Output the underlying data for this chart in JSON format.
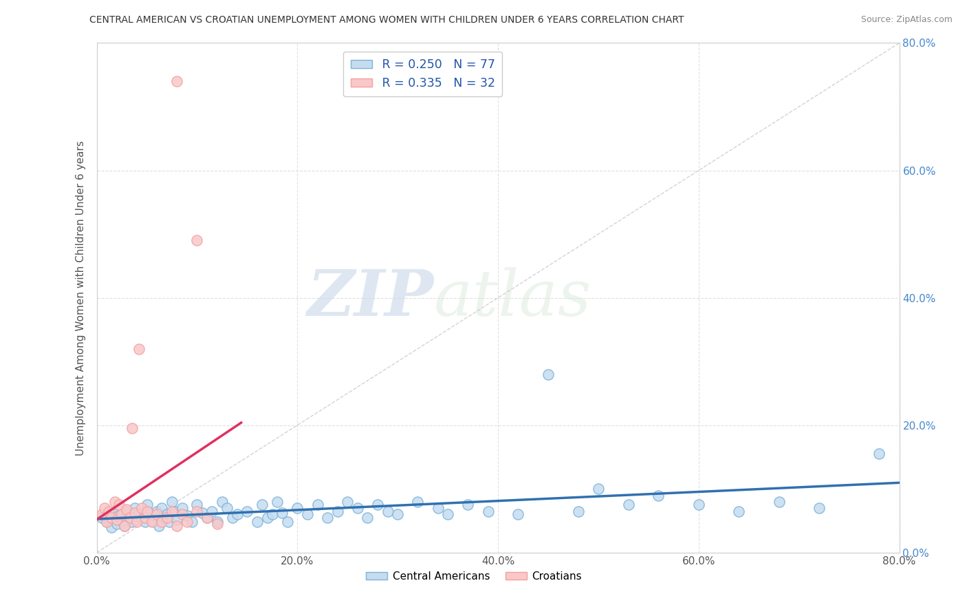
{
  "title": "CENTRAL AMERICAN VS CROATIAN UNEMPLOYMENT AMONG WOMEN WITH CHILDREN UNDER 6 YEARS CORRELATION CHART",
  "source": "Source: ZipAtlas.com",
  "ylabel": "Unemployment Among Women with Children Under 6 years",
  "xlim": [
    0.0,
    0.8
  ],
  "ylim": [
    0.0,
    0.8
  ],
  "xticks": [
    0.0,
    0.2,
    0.4,
    0.6,
    0.8
  ],
  "yticks": [
    0.0,
    0.2,
    0.4,
    0.6,
    0.8
  ],
  "xticklabels": [
    "0.0%",
    "20.0%",
    "40.0%",
    "60.0%",
    "80.0%"
  ],
  "right_yticklabels": [
    "0.0%",
    "20.0%",
    "40.0%",
    "60.0%",
    "80.0%"
  ],
  "legend_R1": "R = 0.250",
  "legend_N1": "N = 77",
  "legend_R2": "R = 0.335",
  "legend_N2": "N = 32",
  "blue_color": "#7ab3d9",
  "pink_color": "#f4a0a0",
  "blue_fill": "#c5dcf0",
  "pink_fill": "#f9c8c8",
  "trend_blue": "#3070b0",
  "trend_pink": "#e03060",
  "diag_color": "#cccccc",
  "watermark_zip": "ZIP",
  "watermark_atlas": "atlas",
  "grid_color": "#dddddd",
  "blue_x": [
    0.005,
    0.01,
    0.012,
    0.015,
    0.018,
    0.02,
    0.022,
    0.025,
    0.028,
    0.03,
    0.033,
    0.035,
    0.038,
    0.04,
    0.042,
    0.045,
    0.048,
    0.05,
    0.052,
    0.055,
    0.058,
    0.06,
    0.062,
    0.065,
    0.068,
    0.07,
    0.072,
    0.075,
    0.078,
    0.08,
    0.085,
    0.09,
    0.095,
    0.1,
    0.105,
    0.11,
    0.115,
    0.12,
    0.125,
    0.13,
    0.135,
    0.14,
    0.15,
    0.16,
    0.165,
    0.17,
    0.175,
    0.18,
    0.185,
    0.19,
    0.2,
    0.21,
    0.22,
    0.23,
    0.24,
    0.25,
    0.26,
    0.27,
    0.28,
    0.29,
    0.3,
    0.32,
    0.34,
    0.35,
    0.37,
    0.39,
    0.42,
    0.45,
    0.48,
    0.5,
    0.53,
    0.56,
    0.6,
    0.64,
    0.68,
    0.72,
    0.78
  ],
  "blue_y": [
    0.055,
    0.048,
    0.052,
    0.04,
    0.06,
    0.045,
    0.058,
    0.05,
    0.042,
    0.065,
    0.055,
    0.048,
    0.07,
    0.052,
    0.06,
    0.055,
    0.048,
    0.075,
    0.062,
    0.05,
    0.058,
    0.065,
    0.042,
    0.07,
    0.055,
    0.06,
    0.048,
    0.08,
    0.065,
    0.052,
    0.07,
    0.058,
    0.048,
    0.075,
    0.062,
    0.055,
    0.065,
    0.048,
    0.08,
    0.07,
    0.055,
    0.06,
    0.065,
    0.048,
    0.075,
    0.055,
    0.06,
    0.08,
    0.062,
    0.048,
    0.07,
    0.06,
    0.075,
    0.055,
    0.065,
    0.08,
    0.07,
    0.055,
    0.075,
    0.065,
    0.06,
    0.08,
    0.07,
    0.06,
    0.075,
    0.065,
    0.06,
    0.28,
    0.065,
    0.1,
    0.075,
    0.09,
    0.075,
    0.065,
    0.08,
    0.07,
    0.155
  ],
  "pink_x": [
    0.005,
    0.008,
    0.01,
    0.012,
    0.015,
    0.018,
    0.02,
    0.022,
    0.025,
    0.028,
    0.03,
    0.033,
    0.035,
    0.038,
    0.04,
    0.042,
    0.045,
    0.048,
    0.05,
    0.055,
    0.06,
    0.065,
    0.07,
    0.075,
    0.08,
    0.085,
    0.09,
    0.1,
    0.11,
    0.12,
    0.08,
    0.1
  ],
  "pink_y": [
    0.06,
    0.07,
    0.048,
    0.065,
    0.055,
    0.08,
    0.052,
    0.075,
    0.06,
    0.042,
    0.068,
    0.055,
    0.195,
    0.062,
    0.048,
    0.32,
    0.07,
    0.055,
    0.065,
    0.048,
    0.06,
    0.048,
    0.055,
    0.065,
    0.042,
    0.06,
    0.048,
    0.065,
    0.055,
    0.045,
    0.74,
    0.49
  ]
}
